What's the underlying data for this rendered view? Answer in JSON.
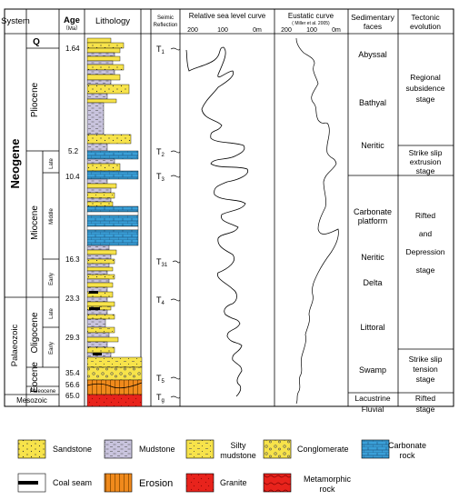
{
  "headers": {
    "system": "System",
    "age": "Age",
    "age_unit": "（Ma）",
    "lithology": "Lithology",
    "seismic_1": "Seimic",
    "seismic_2": "Reflection",
    "relative_sea_level": "Relative sea level curve",
    "eustatic": "Eustatic curve",
    "eustatic_ref": "( Miller et al. 2005)",
    "sed_faces_1": "Sedimentary",
    "sed_faces_2": "faces",
    "tectonic_1": "Tectonic",
    "tectonic_2": "evolution"
  },
  "axis_ticks": {
    "relative": [
      "200",
      "100",
      "0m"
    ],
    "eustatic": [
      "200",
      "100",
      "0m"
    ]
  },
  "systems": {
    "neogene": "Neogene",
    "palaeozoic": "Palaeozoic",
    "mesozoic": "Mesozoic"
  },
  "series": {
    "q": "Q",
    "pliocene": "Pliocene",
    "miocene": "Miocene",
    "oligocene": "Oligocene",
    "eocene": "Eocene",
    "paleocene": "Paleocene"
  },
  "stages": {
    "late": "Late",
    "middle": "Middle",
    "early": "Early",
    "olig_late": "Late",
    "olig_early": "Early"
  },
  "ages": [
    "1.64",
    "5.2",
    "10.4",
    "16.3",
    "23.3",
    "29.3",
    "35.4",
    "56.6",
    "65.0"
  ],
  "reflections": [
    {
      "label": "T",
      "sub": "1"
    },
    {
      "label": "T",
      "sub": "2"
    },
    {
      "label": "T",
      "sub": "3"
    },
    {
      "label": "T",
      "sub": "31"
    },
    {
      "label": "T",
      "sub": "4"
    },
    {
      "label": "T",
      "sub": "5"
    },
    {
      "label": "T",
      "sub": "g"
    }
  ],
  "sedimentary_faces": {
    "abyssal": "Abyssal",
    "bathyal": "Bathyal",
    "neritic": "Neritic",
    "carbonate_1": "Carbonate",
    "carbonate_2": "platform",
    "neritic2": "Neritic",
    "delta": "Delta",
    "littoral": "Littoral",
    "swamp": "Swamp",
    "lacustrine": "Lacustrine",
    "fluvial": "Fluvial"
  },
  "tectonic": {
    "regional": [
      "Regional",
      "subsidence",
      "stage"
    ],
    "strike_extrusion": [
      "Strike slip",
      "extrusion",
      "stage"
    ],
    "rifted_depression": [
      "Rifted",
      "and",
      "Depression",
      "stage"
    ],
    "strike_tension": [
      "Strike slip",
      "tension",
      "stage"
    ],
    "rifted": [
      "Rifted",
      "stage"
    ]
  },
  "legend": {
    "sandstone": "Sandstone",
    "mudstone": "Mudstone",
    "silty_1": "Silty",
    "silty_2": "mudstone",
    "conglomerate": "Conglomerate",
    "carbonate_1": "Carbonate",
    "carbonate_2": "rock",
    "coal": "Coal seam",
    "erosion": "Erosion",
    "granite": "Granite",
    "metamorphic_1": "Metamorphic",
    "metamorphic_2": "rock"
  },
  "colors": {
    "sandstone": "#f7e34a",
    "mudstone": "#c9c4de",
    "carbonate": "#3aa0d8",
    "granite": "#e8231c",
    "erosion": "#f08a1c"
  }
}
